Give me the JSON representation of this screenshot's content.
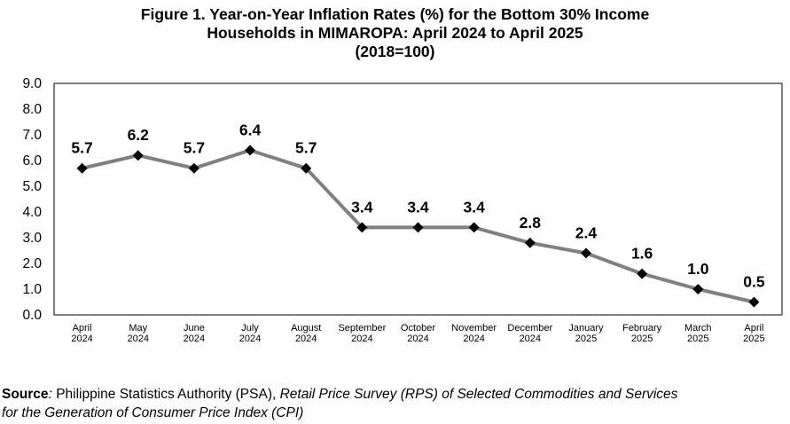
{
  "title_lines": [
    "Figure 1. Year-on-Year Inflation Rates (%) for the Bottom 30% Income",
    "Households in MIMAROPA: April 2024 to April 2025",
    "(2018=100)"
  ],
  "source": {
    "label": "Source",
    "colon": ": ",
    "text1": "Philippine Statistics Authority (PSA), ",
    "text2": "Retail Price Survey (RPS) of Selected Commodities and Services",
    "line2": "for the Generation of Consumer Price Index (CPI)"
  },
  "chart_data": {
    "type": "line",
    "title": "Figure 1. Year-on-Year Inflation Rates (%) for the Bottom 30% Income Households in MIMAROPA: April 2024 to April 2025 (2018=100)",
    "categories": [
      [
        "April",
        "2024"
      ],
      [
        "May",
        "2024"
      ],
      [
        "June",
        "2024"
      ],
      [
        "July",
        "2024"
      ],
      [
        "August",
        "2024"
      ],
      [
        "September",
        "2024"
      ],
      [
        "October",
        "2024"
      ],
      [
        "November",
        "2024"
      ],
      [
        "December",
        "2024"
      ],
      [
        "January",
        "2025"
      ],
      [
        "February",
        "2025"
      ],
      [
        "March",
        "2025"
      ],
      [
        "April",
        "2025"
      ]
    ],
    "values": [
      5.7,
      6.2,
      5.7,
      6.4,
      5.7,
      3.4,
      3.4,
      3.4,
      2.8,
      2.4,
      1.6,
      1.0,
      0.5
    ],
    "value_labels": [
      "5.7",
      "6.2",
      "5.7",
      "6.4",
      "5.7",
      "3.4",
      "3.4",
      "3.4",
      "2.8",
      "2.4",
      "1.6",
      "1.0",
      "0.5"
    ],
    "ylim": [
      0,
      9
    ],
    "ytick_labels": [
      "0.0",
      "1.0",
      "2.0",
      "3.0",
      "4.0",
      "5.0",
      "6.0",
      "7.0",
      "8.0",
      "9.0"
    ],
    "grid": false,
    "line_color": "#808080",
    "marker": "diamond",
    "marker_color": "#000000"
  }
}
